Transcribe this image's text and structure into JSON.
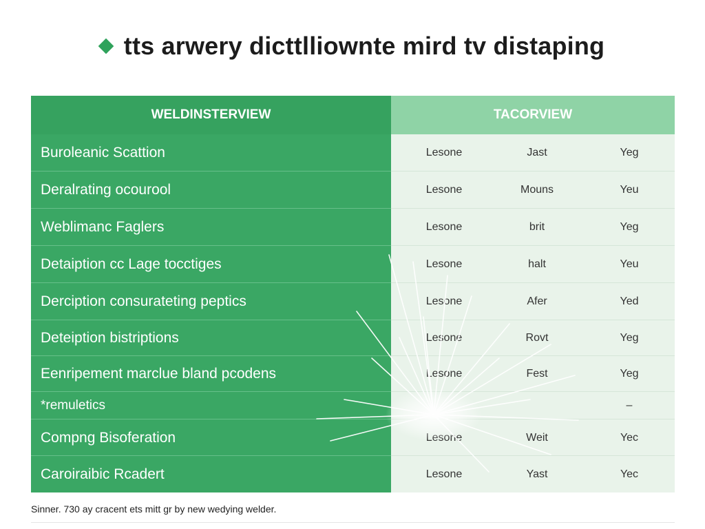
{
  "title": "tts arwery dicttlliownte mird tv distaping",
  "table": {
    "header_left": "WELDINSTERVIEW",
    "header_right": "TACORVIEW",
    "rows": [
      {
        "label": "Buroleanic Scattion",
        "c1": "Lesone",
        "c2": "Jast",
        "c3": "Yeg"
      },
      {
        "label": "Deralrating ocourool",
        "c1": "Lesone",
        "c2": "Mouns",
        "c3": "Yeu"
      },
      {
        "label": "Weblimanc Faglers",
        "c1": "Lesone",
        "c2": "brit",
        "c3": "Yeg"
      },
      {
        "label": "Detaiption cc Lage tocctiges",
        "c1": "Lesone",
        "c2": "halt",
        "c3": "Yeu"
      },
      {
        "label": "Derciption consurateting peptics",
        "c1": "Lesone",
        "c2": "Afer",
        "c3": "Yed"
      },
      {
        "label": "Deteiption bistriptions",
        "c1": "Lesone",
        "c2": "Rovt",
        "c3": "Yeg"
      },
      {
        "label": "Eenripement marclue bland pcodens",
        "c1": "Lesone",
        "c2": "Fest",
        "c3": "Yeg"
      },
      {
        "label": "*remuletics",
        "c1": "",
        "c2": "",
        "c3": "–"
      },
      {
        "label": "Compng Bisoferation",
        "c1": "Lesone",
        "c2": "Weit",
        "c3": "Yec"
      },
      {
        "label": "Caroiraibic Rcadert",
        "c1": "Lesone",
        "c2": "Yast",
        "c3": "Yec"
      }
    ]
  },
  "footer": "Sinner. 730 ay cracent ets mitt gr by new wedying welder.",
  "colors": {
    "accent": "#3aa764",
    "header_left": "#36a25f",
    "header_right": "#8fd3a6",
    "right_bg": "#e9f3ea"
  },
  "icons": [
    "diamond-icon",
    "spark-burst"
  ]
}
